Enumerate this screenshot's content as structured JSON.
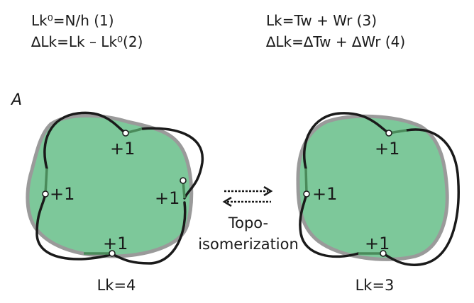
{
  "equations": {
    "left_line1": "Lk⁰=N/h (1)",
    "left_line2": "∆Lk=Lk – Lk⁰(2)",
    "right_line1": "Lk=Tw + Wr (3)",
    "right_line2": "∆Lk=∆Tw + ∆Wr (4)"
  },
  "panel_label": "A",
  "left_circle": {
    "crossings": [
      "+1",
      "+1",
      "+1",
      "+1"
    ],
    "caption": "Lk=4"
  },
  "right_circle": {
    "crossings": [
      "+1",
      "+1",
      "+1"
    ],
    "caption": "Lk=3"
  },
  "transition": {
    "line1": "Topo-",
    "line2": "isomerization"
  },
  "colors": {
    "fill": "#7dc89a",
    "outline": "#9a9a9a",
    "strand": "#1a1a1a",
    "crossing_segment": "#4a8a5a"
  }
}
